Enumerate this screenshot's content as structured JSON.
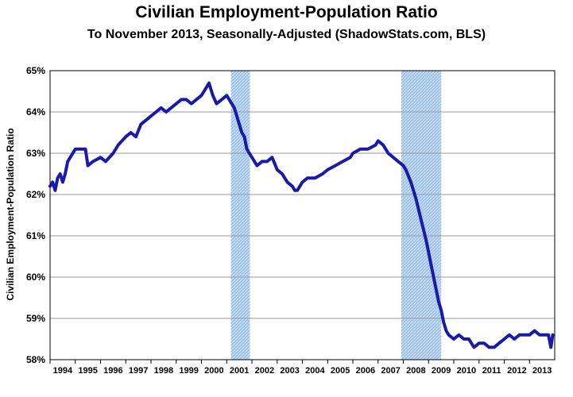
{
  "chart_data": {
    "type": "line",
    "title": "Civilian Employment-Population Ratio",
    "subtitle": "To November 2013, Seasonally-Adjusted (ShadowStats.com, BLS)",
    "xlabel": "",
    "ylabel": "Civilian Employment-Population Ratio",
    "xlim": [
      1994.0,
      2014.0
    ],
    "ylim": [
      58,
      65
    ],
    "grid": true,
    "colors": {
      "line": "#1a1aa8",
      "recession": "#9ec3ea",
      "grid": "#9a9a9a"
    },
    "x_ticks": [
      "1994",
      "1995",
      "1996",
      "1997",
      "1998",
      "1999",
      "2000",
      "2001",
      "2002",
      "2003",
      "2004",
      "2005",
      "2006",
      "2007",
      "2008",
      "2009",
      "2010",
      "2011",
      "2012",
      "2013"
    ],
    "y_ticks": [
      {
        "value": 58,
        "label": "58%"
      },
      {
        "value": 59,
        "label": "59%"
      },
      {
        "value": 60,
        "label": "60%"
      },
      {
        "value": 61,
        "label": "61%"
      },
      {
        "value": 62,
        "label": "62%"
      },
      {
        "value": 63,
        "label": "63%"
      },
      {
        "value": 64,
        "label": "64%"
      },
      {
        "value": 65,
        "label": "65%"
      }
    ],
    "recessions": [
      {
        "start": 2001.17,
        "end": 2001.92
      },
      {
        "start": 2007.92,
        "end": 2009.5
      }
    ],
    "series": [
      {
        "name": "Civilian Employment-Population Ratio",
        "x": [
          1994.0,
          1994.1,
          1994.2,
          1994.3,
          1994.4,
          1994.5,
          1994.6,
          1994.7,
          1994.8,
          1995.0,
          1995.2,
          1995.4,
          1995.5,
          1995.7,
          1996.0,
          1996.2,
          1996.5,
          1996.7,
          1997.0,
          1997.2,
          1997.4,
          1997.6,
          1997.8,
          1998.0,
          1998.2,
          1998.4,
          1998.6,
          1998.8,
          1999.0,
          1999.2,
          1999.4,
          1999.6,
          1999.8,
          2000.0,
          2000.1,
          2000.2,
          2000.3,
          2000.45,
          2000.6,
          2000.8,
          2001.0,
          2001.1,
          2001.2,
          2001.3,
          2001.4,
          2001.5,
          2001.6,
          2001.7,
          2001.8,
          2001.9,
          2002.0,
          2002.2,
          2002.4,
          2002.6,
          2002.8,
          2003.0,
          2003.2,
          2003.4,
          2003.6,
          2003.7,
          2003.8,
          2003.9,
          2004.0,
          2004.2,
          2004.5,
          2004.8,
          2005.0,
          2005.3,
          2005.6,
          2005.9,
          2006.0,
          2006.3,
          2006.6,
          2006.9,
          2007.0,
          2007.2,
          2007.4,
          2007.6,
          2007.8,
          2008.0,
          2008.1,
          2008.3,
          2008.5,
          2008.7,
          2008.9,
          2009.0,
          2009.1,
          2009.2,
          2009.3,
          2009.4,
          2009.5,
          2009.6,
          2009.7,
          2009.8,
          2010.0,
          2010.2,
          2010.4,
          2010.6,
          2010.8,
          2011.0,
          2011.2,
          2011.4,
          2011.6,
          2011.8,
          2012.0,
          2012.2,
          2012.4,
          2012.6,
          2012.8,
          2013.0,
          2013.2,
          2013.4,
          2013.6,
          2013.75,
          2013.85,
          2013.92
        ],
        "values": [
          62.2,
          62.3,
          62.1,
          62.4,
          62.5,
          62.3,
          62.5,
          62.8,
          62.9,
          63.1,
          63.1,
          63.1,
          62.7,
          62.8,
          62.9,
          62.8,
          63.0,
          63.2,
          63.4,
          63.5,
          63.4,
          63.7,
          63.8,
          63.9,
          64.0,
          64.1,
          64.0,
          64.1,
          64.2,
          64.3,
          64.3,
          64.2,
          64.3,
          64.4,
          64.5,
          64.6,
          64.7,
          64.4,
          64.2,
          64.3,
          64.4,
          64.3,
          64.2,
          64.1,
          63.9,
          63.7,
          63.5,
          63.4,
          63.1,
          63.0,
          62.9,
          62.7,
          62.8,
          62.8,
          62.9,
          62.6,
          62.5,
          62.3,
          62.2,
          62.1,
          62.1,
          62.2,
          62.3,
          62.4,
          62.4,
          62.5,
          62.6,
          62.7,
          62.8,
          62.9,
          63.0,
          63.1,
          63.1,
          63.2,
          63.3,
          63.2,
          63.0,
          62.9,
          62.8,
          62.7,
          62.6,
          62.3,
          61.9,
          61.4,
          60.9,
          60.6,
          60.3,
          60.0,
          59.7,
          59.4,
          59.2,
          58.9,
          58.7,
          58.6,
          58.5,
          58.6,
          58.5,
          58.5,
          58.3,
          58.4,
          58.4,
          58.3,
          58.3,
          58.4,
          58.5,
          58.6,
          58.5,
          58.6,
          58.6,
          58.6,
          58.7,
          58.6,
          58.6,
          58.6,
          58.3,
          58.6
        ]
      }
    ]
  }
}
